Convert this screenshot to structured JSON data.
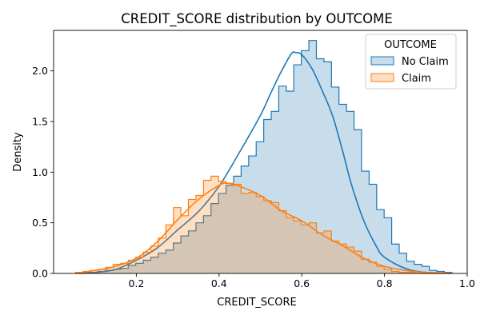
{
  "chart_data": {
    "type": "histogram-kde",
    "title": "CREDIT_SCORE distribution by OUTCOME",
    "xlabel": "CREDIT_SCORE",
    "ylabel": "Density",
    "xlim": [
      0.0,
      1.0
    ],
    "ylim": [
      0.0,
      2.4
    ],
    "x_ticks": [
      0.2,
      0.4,
      0.6,
      0.8,
      1.0
    ],
    "x_tick_labels": [
      "0.2",
      "0.4",
      "0.6",
      "0.8",
      "1.0"
    ],
    "y_ticks": [
      0.0,
      0.5,
      1.0,
      1.5,
      2.0
    ],
    "y_tick_labels": [
      "0.0",
      "0.5",
      "1.0",
      "1.5",
      "2.0"
    ],
    "bins_start": 0.053,
    "bin_width": 0.0182,
    "legend": {
      "title": "OUTCOME",
      "placement": "top-right"
    },
    "grid": false,
    "series": [
      {
        "name": "No Claim",
        "color": "#1f77b4",
        "fill": "#1f77b4",
        "hist_density": [
          0.0,
          0.01,
          0.01,
          0.02,
          0.03,
          0.04,
          0.05,
          0.08,
          0.1,
          0.13,
          0.16,
          0.2,
          0.23,
          0.3,
          0.37,
          0.42,
          0.5,
          0.57,
          0.69,
          0.79,
          0.87,
          0.96,
          1.06,
          1.16,
          1.3,
          1.52,
          1.6,
          1.85,
          1.8,
          2.06,
          2.2,
          2.3,
          2.12,
          2.09,
          1.84,
          1.67,
          1.6,
          1.42,
          1.01,
          0.88,
          0.63,
          0.55,
          0.29,
          0.2,
          0.12,
          0.09,
          0.07,
          0.03,
          0.02,
          0.01
        ],
        "kde": [
          [
            0.06,
            0.002
          ],
          [
            0.1,
            0.01
          ],
          [
            0.15,
            0.04
          ],
          [
            0.2,
            0.13
          ],
          [
            0.25,
            0.25
          ],
          [
            0.3,
            0.43
          ],
          [
            0.35,
            0.61
          ],
          [
            0.4,
            0.86
          ],
          [
            0.45,
            1.2
          ],
          [
            0.5,
            1.56
          ],
          [
            0.525,
            1.78
          ],
          [
            0.55,
            1.99
          ],
          [
            0.575,
            2.17
          ],
          [
            0.585,
            2.18
          ],
          [
            0.6,
            2.16
          ],
          [
            0.625,
            2.02
          ],
          [
            0.65,
            1.8
          ],
          [
            0.675,
            1.55
          ],
          [
            0.7,
            1.19
          ],
          [
            0.72,
            0.88
          ],
          [
            0.75,
            0.52
          ],
          [
            0.78,
            0.27
          ],
          [
            0.8,
            0.16
          ],
          [
            0.85,
            0.05
          ],
          [
            0.9,
            0.01
          ],
          [
            0.96,
            0.001
          ]
        ]
      },
      {
        "name": "Claim",
        "color": "#ff7f0e",
        "fill": "#ff7f0e",
        "hist_density": [
          0.01,
          0.02,
          0.03,
          0.04,
          0.06,
          0.09,
          0.1,
          0.13,
          0.16,
          0.21,
          0.27,
          0.35,
          0.48,
          0.65,
          0.57,
          0.73,
          0.77,
          0.92,
          0.96,
          0.91,
          0.89,
          0.88,
          0.79,
          0.8,
          0.76,
          0.72,
          0.7,
          0.62,
          0.55,
          0.52,
          0.48,
          0.5,
          0.4,
          0.42,
          0.32,
          0.29,
          0.26,
          0.22,
          0.14,
          0.11,
          0.07,
          0.04,
          0.02,
          0.01,
          0.01,
          0.0,
          0.0,
          0.0,
          0.0,
          0.0
        ],
        "kde": [
          [
            0.06,
            0.005
          ],
          [
            0.1,
            0.03
          ],
          [
            0.15,
            0.07
          ],
          [
            0.2,
            0.15
          ],
          [
            0.25,
            0.31
          ],
          [
            0.3,
            0.53
          ],
          [
            0.35,
            0.73
          ],
          [
            0.4,
            0.87
          ],
          [
            0.42,
            0.89
          ],
          [
            0.45,
            0.86
          ],
          [
            0.5,
            0.77
          ],
          [
            0.55,
            0.62
          ],
          [
            0.6,
            0.52
          ],
          [
            0.65,
            0.38
          ],
          [
            0.7,
            0.27
          ],
          [
            0.75,
            0.15
          ],
          [
            0.8,
            0.07
          ],
          [
            0.85,
            0.03
          ],
          [
            0.9,
            0.01
          ],
          [
            0.96,
            0.002
          ]
        ]
      }
    ]
  }
}
